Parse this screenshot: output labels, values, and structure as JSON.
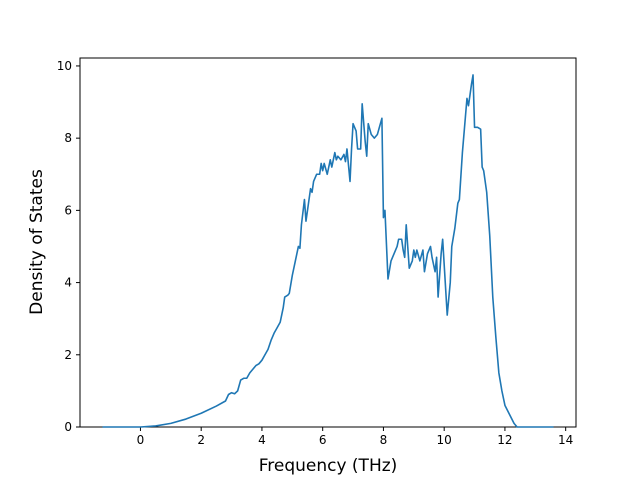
{
  "chart_data": {
    "type": "line",
    "xlabel": "Frequency (THz)",
    "ylabel": "Density of States",
    "color": "#1f77b4",
    "x": [
      -1.25,
      0,
      0.5,
      1,
      1.5,
      2,
      2.5,
      2.8,
      2.9,
      3.0,
      3.1,
      3.2,
      3.3,
      3.4,
      3.5,
      3.6,
      3.7,
      3.8,
      3.9,
      4.0,
      4.1,
      4.2,
      4.3,
      4.4,
      4.5,
      4.6,
      4.7,
      4.75,
      4.85,
      4.9,
      5.0,
      5.1,
      5.2,
      5.25,
      5.3,
      5.4,
      5.45,
      5.5,
      5.6,
      5.65,
      5.7,
      5.8,
      5.9,
      5.95,
      6.0,
      6.05,
      6.15,
      6.25,
      6.3,
      6.4,
      6.45,
      6.5,
      6.6,
      6.7,
      6.75,
      6.8,
      6.9,
      6.95,
      7.0,
      7.05,
      7.1,
      7.15,
      7.25,
      7.3,
      7.4,
      7.45,
      7.5,
      7.6,
      7.7,
      7.8,
      7.9,
      7.95,
      8.0,
      8.05,
      8.15,
      8.25,
      8.35,
      8.45,
      8.5,
      8.6,
      8.65,
      8.7,
      8.75,
      8.85,
      8.95,
      9.0,
      9.05,
      9.1,
      9.2,
      9.3,
      9.35,
      9.45,
      9.55,
      9.6,
      9.7,
      9.75,
      9.8,
      9.9,
      9.95,
      10.0,
      10.1,
      10.2,
      10.25,
      10.35,
      10.45,
      10.5,
      10.6,
      10.7,
      10.75,
      10.8,
      10.85,
      10.9,
      10.95,
      11.0,
      11.1,
      11.2,
      11.25,
      11.3,
      11.4,
      11.5,
      11.6,
      11.7,
      11.8,
      11.9,
      12.0,
      12.15,
      12.3,
      12.4,
      13.0,
      13.6
    ],
    "values": [
      0,
      0,
      0.03,
      0.1,
      0.22,
      0.38,
      0.58,
      0.72,
      0.9,
      0.95,
      0.92,
      1.0,
      1.3,
      1.35,
      1.35,
      1.5,
      1.6,
      1.7,
      1.75,
      1.85,
      2.0,
      2.15,
      2.4,
      2.6,
      2.75,
      2.9,
      3.3,
      3.6,
      3.65,
      3.7,
      4.2,
      4.6,
      5.0,
      4.95,
      5.6,
      6.3,
      5.7,
      6.0,
      6.6,
      6.5,
      6.8,
      7.0,
      7.0,
      7.3,
      7.1,
      7.3,
      7.0,
      7.4,
      7.2,
      7.6,
      7.4,
      7.5,
      7.4,
      7.55,
      7.35,
      7.7,
      6.8,
      7.7,
      8.4,
      8.3,
      8.2,
      7.7,
      7.7,
      8.95,
      7.9,
      7.5,
      8.4,
      8.1,
      8.0,
      8.1,
      8.4,
      8.55,
      5.8,
      6.0,
      4.1,
      4.6,
      4.8,
      5.0,
      5.2,
      5.2,
      4.9,
      4.7,
      5.6,
      4.4,
      4.6,
      4.9,
      4.7,
      4.9,
      4.6,
      4.9,
      4.3,
      4.8,
      5.0,
      4.7,
      4.3,
      4.7,
      3.6,
      4.8,
      5.2,
      4.5,
      3.1,
      4.0,
      5.0,
      5.5,
      6.2,
      6.3,
      7.6,
      8.6,
      9.1,
      8.9,
      9.2,
      9.5,
      9.75,
      8.3,
      8.3,
      8.25,
      7.2,
      7.1,
      6.5,
      5.3,
      3.6,
      2.5,
      1.5,
      1.0,
      0.6,
      0.35,
      0.1,
      0,
      0,
      0
    ],
    "xlim": [
      -1.99,
      14.34
    ],
    "xticks": [
      0,
      2,
      4,
      6,
      8,
      10,
      12,
      14
    ],
    "ylim": [
      0,
      10.22
    ],
    "yticks": [
      0,
      2,
      4,
      6,
      8,
      10
    ]
  }
}
